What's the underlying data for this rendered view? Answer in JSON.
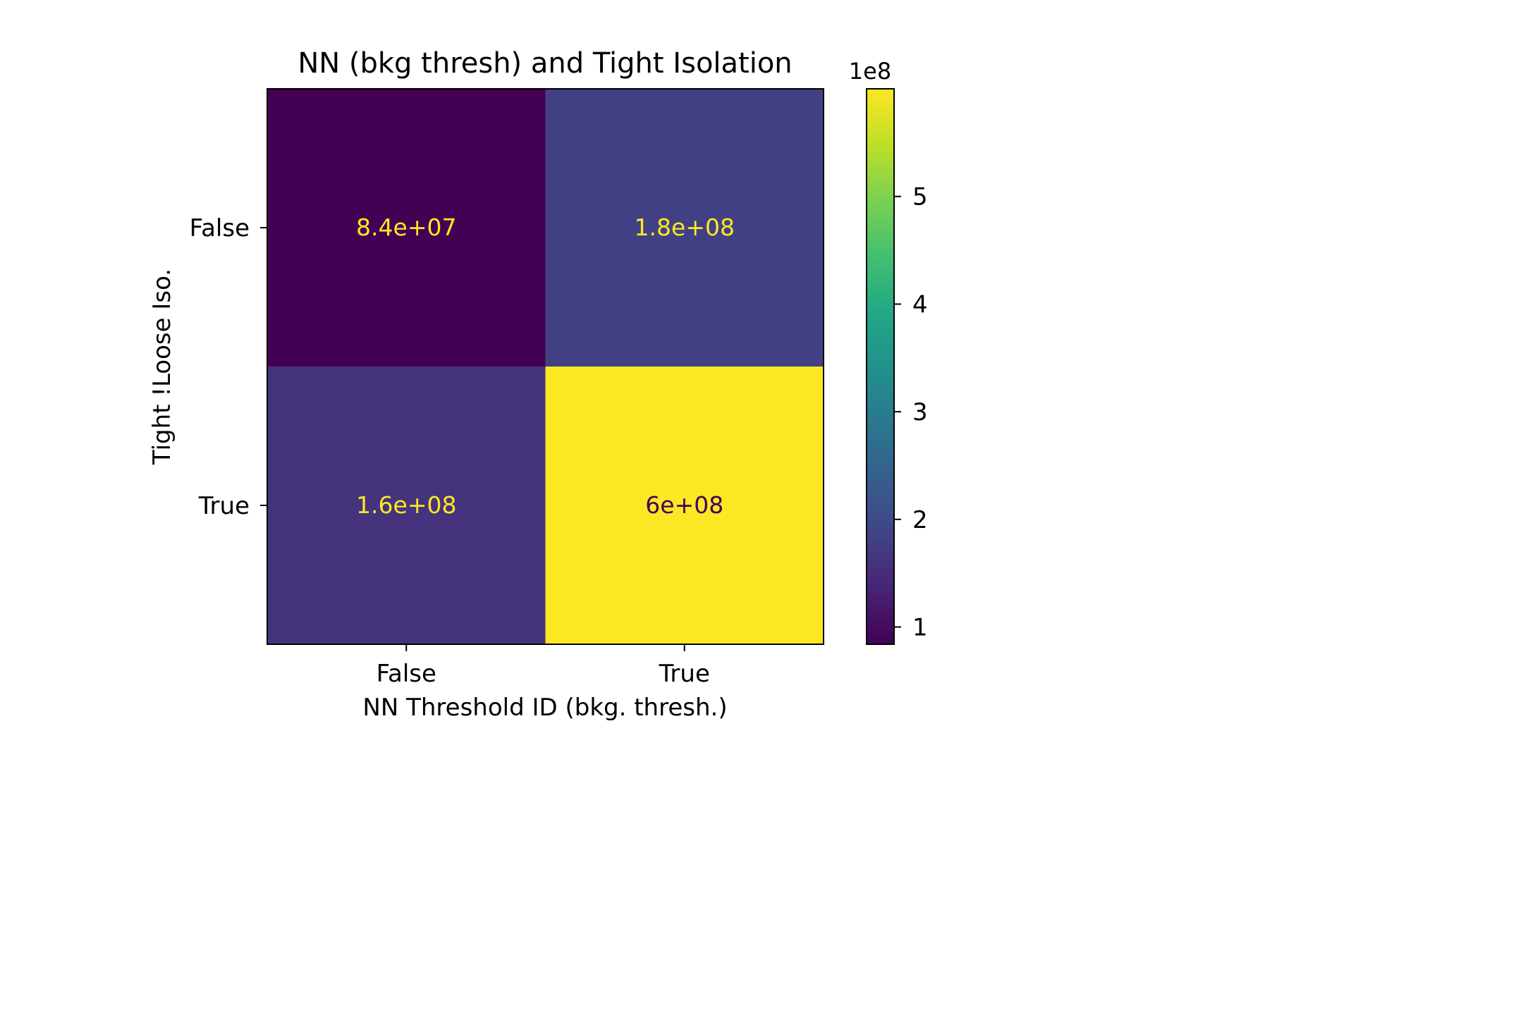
{
  "chart_data": {
    "type": "heatmap",
    "title": "NN (bkg thresh) and Tight Isolation",
    "xlabel": "NN Threshold ID (bkg. thresh.)",
    "ylabel": "Tight !Loose Iso.",
    "x_categories": [
      "False",
      "True"
    ],
    "y_categories": [
      "False",
      "True"
    ],
    "values": [
      [
        84000000,
        180000000
      ],
      [
        160000000,
        600000000
      ]
    ],
    "cell_labels": [
      [
        "8.4e+07",
        "1.8e+08"
      ],
      [
        "1.6e+08",
        "6e+08"
      ]
    ],
    "colormap": "viridis",
    "colorbar": {
      "range": [
        84000000,
        600000000
      ],
      "ticks": [
        1,
        2,
        3,
        4,
        5
      ],
      "offset_label": "1e8"
    },
    "colors": {
      "text_on_dark": "#fde725",
      "text_on_light": "#440154"
    }
  }
}
